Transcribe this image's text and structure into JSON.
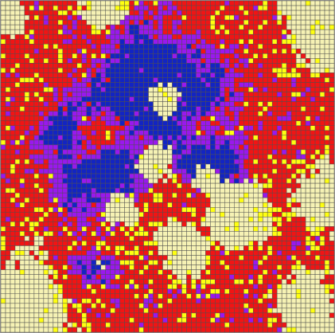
{
  "grid": {
    "cols": 70,
    "rows": 69,
    "palette": {
      "blue": "#1224c4",
      "purple": "#9a18ee",
      "red": "#f21414",
      "yellow": "#ffff10",
      "cream": "#f6f2b4",
      "line": "#505050"
    }
  }
}
